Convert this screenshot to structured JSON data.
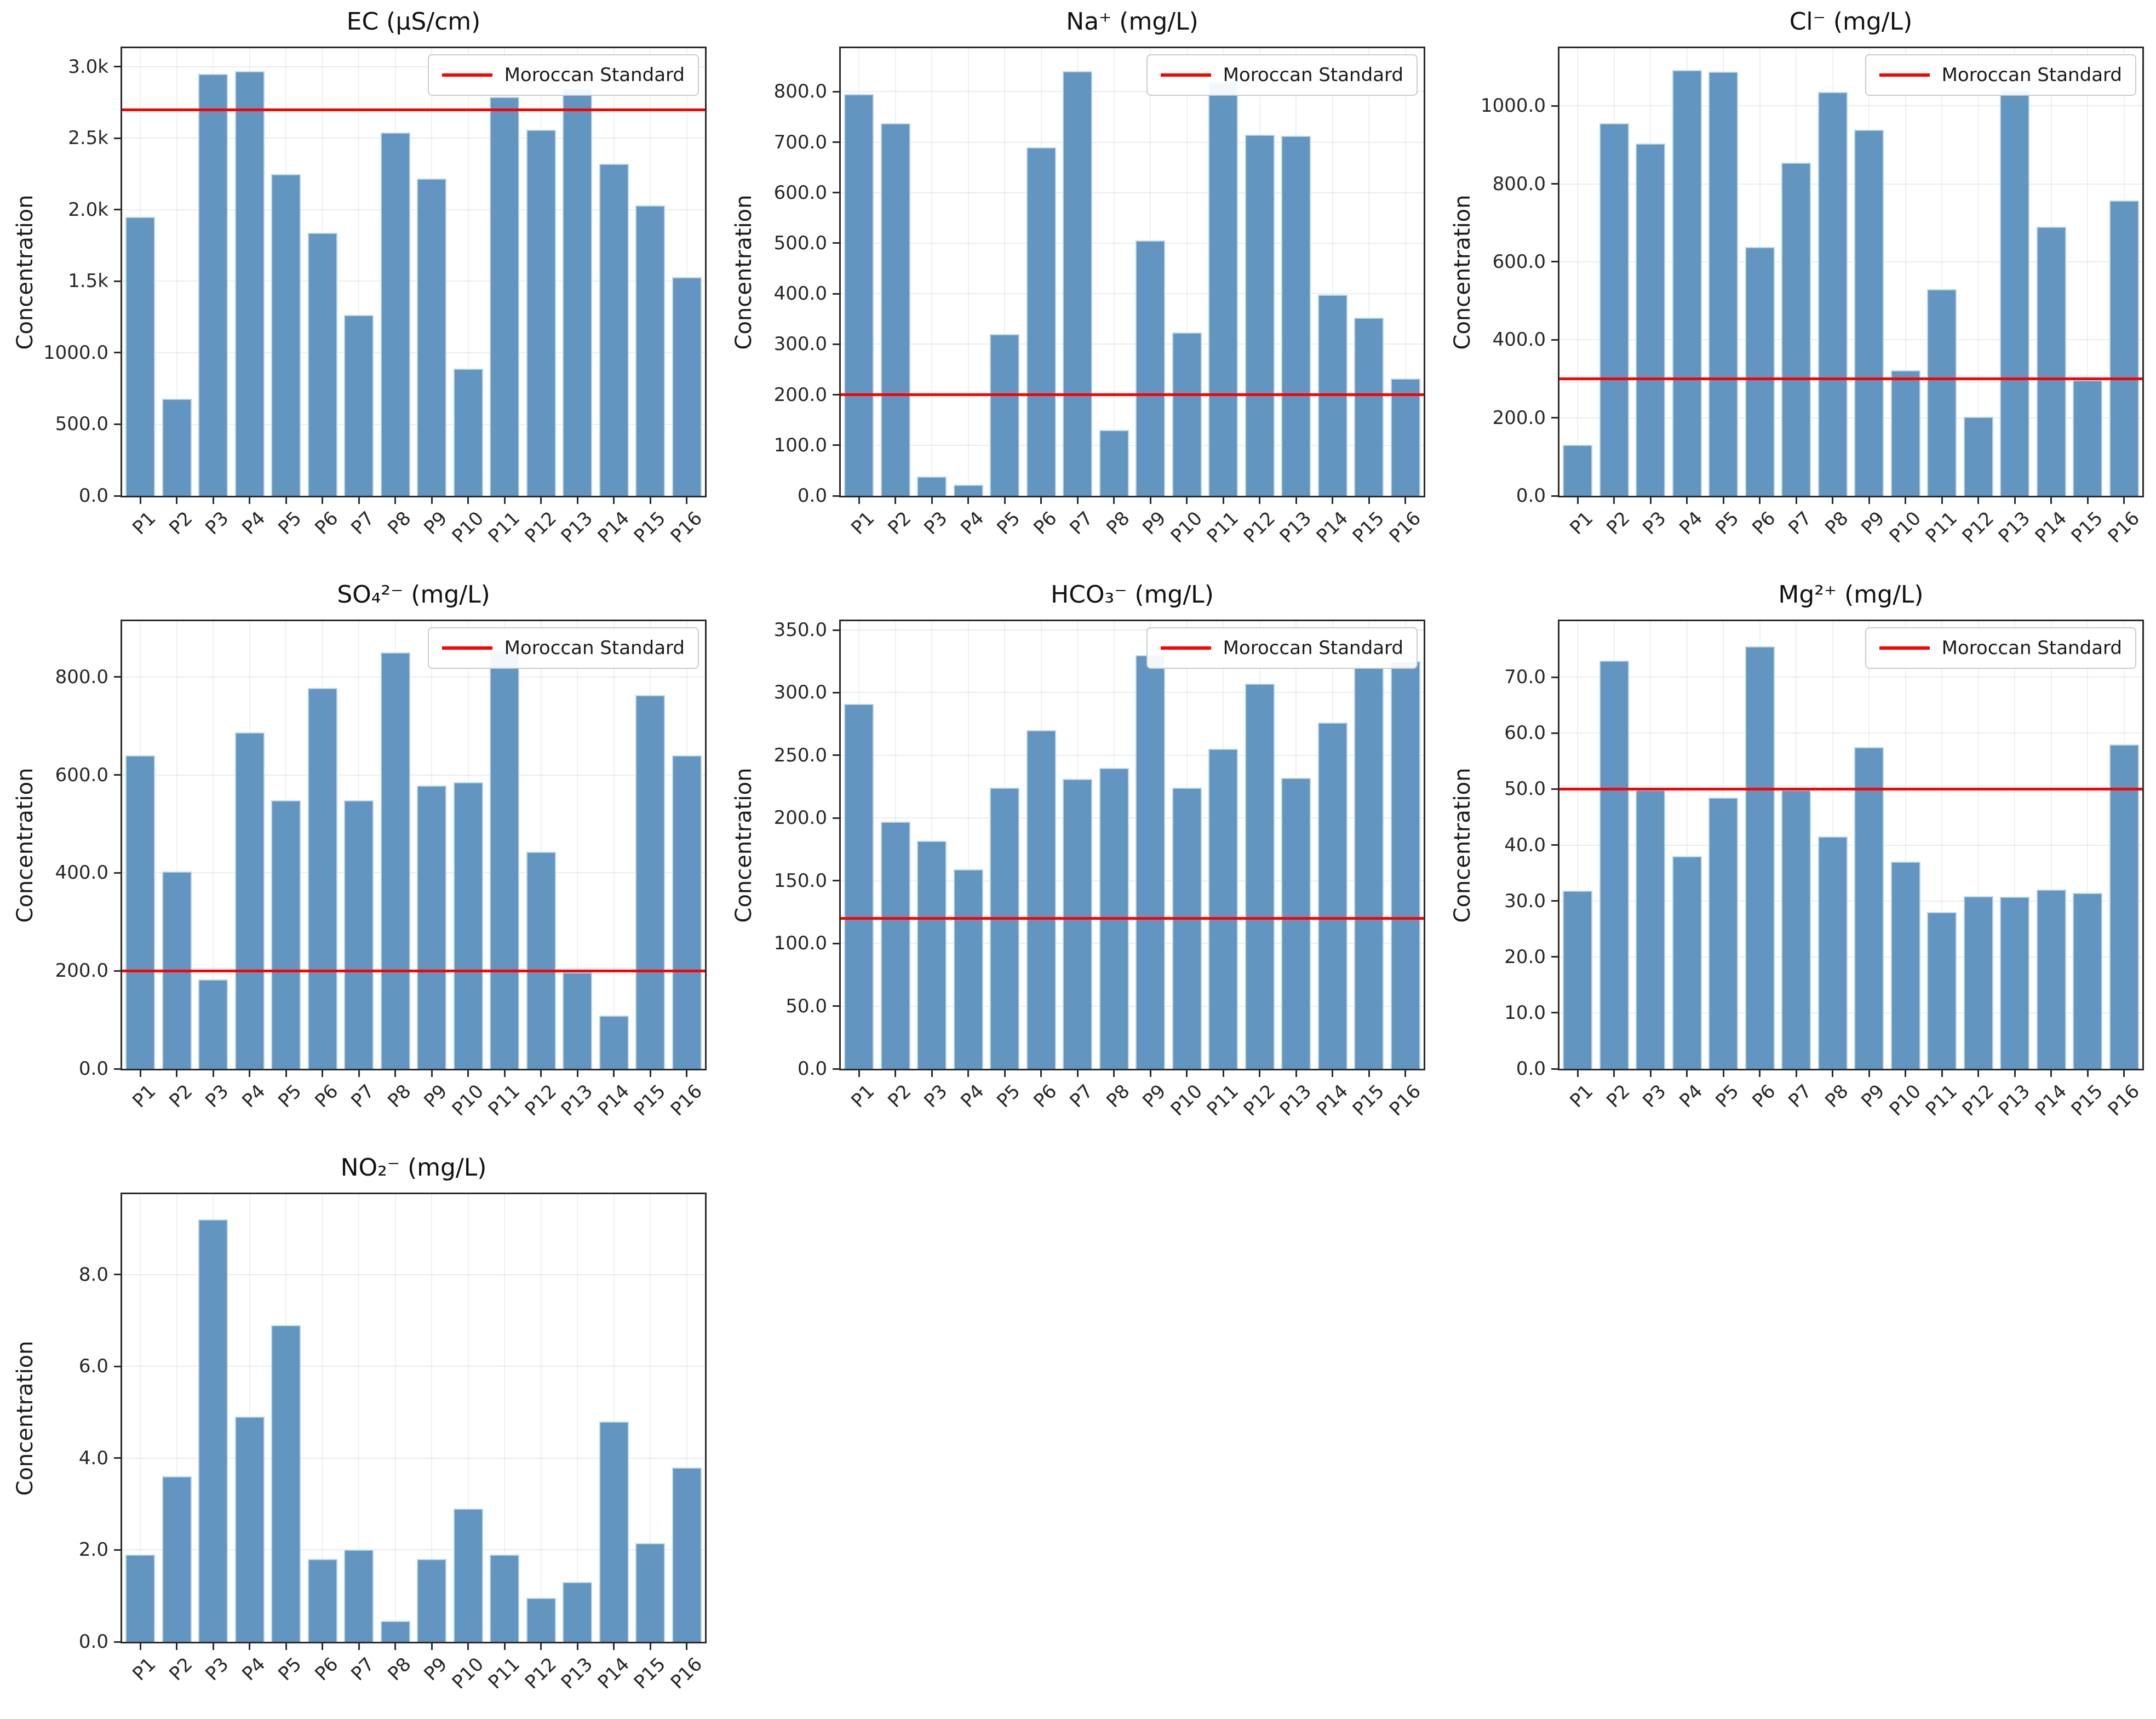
{
  "figure": {
    "background": "#ffffff",
    "bar_color": "#6295bf",
    "bar_edge_color": "#b9d6ea",
    "standard_line_color": "#ff0000",
    "axis_color": "#2b2b2b",
    "ylabel": "Concentration",
    "legend_label": "Moroccan Standard"
  },
  "categories": [
    "P1",
    "P2",
    "P3",
    "P4",
    "P5",
    "P6",
    "P7",
    "P8",
    "P9",
    "P10",
    "P11",
    "P12",
    "P13",
    "P14",
    "P15",
    "P16"
  ],
  "chart_data": [
    {
      "id": "ec",
      "type": "bar",
      "title": "EC (μS/cm)",
      "ylabel": "Concentration",
      "ylim": [
        0,
        3130
      ],
      "tick_values": [
        0,
        500,
        1000,
        1500,
        2000,
        2500,
        3000
      ],
      "tick_labels": [
        "0.0",
        "500.0",
        "1000.0",
        "1.5k",
        "2.0k",
        "2.5k",
        "3.0k"
      ],
      "values": [
        1950,
        680,
        2950,
        2970,
        2250,
        1840,
        1265,
        2540,
        2220,
        890,
        2790,
        2560,
        2850,
        2320,
        2030,
        1530
      ],
      "standard_line": 2700,
      "legend": true,
      "legend_label": "Moroccan Standard"
    },
    {
      "id": "na",
      "type": "bar",
      "title": "Na⁺ (mg/L)",
      "ylabel": "Concentration",
      "ylim": [
        0,
        886
      ],
      "tick_values": [
        0,
        100,
        200,
        300,
        400,
        500,
        600,
        700,
        800
      ],
      "tick_labels": [
        "0.0",
        "100.0",
        "200.0",
        "300.0",
        "400.0",
        "500.0",
        "600.0",
        "700.0",
        "800.0"
      ],
      "values": [
        795,
        737,
        38,
        22,
        320,
        690,
        840,
        130,
        505,
        323,
        820,
        715,
        712,
        398,
        352,
        232
      ],
      "standard_line": 200,
      "legend": true,
      "legend_label": "Moroccan Standard"
    },
    {
      "id": "cl",
      "type": "bar",
      "title": "Cl⁻ (mg/L)",
      "ylabel": "Concentration",
      "ylim": [
        0,
        1148
      ],
      "tick_values": [
        0,
        200,
        400,
        600,
        800,
        1000
      ],
      "tick_labels": [
        "0.0",
        "200.0",
        "400.0",
        "600.0",
        "800.0",
        "1000.0"
      ],
      "values": [
        130,
        955,
        903,
        1092,
        1088,
        638,
        855,
        1035,
        938,
        322,
        530,
        203,
        1040,
        690,
        297,
        757
      ],
      "standard_line": 300,
      "legend": true,
      "legend_label": "Moroccan Standard"
    },
    {
      "id": "so4",
      "type": "bar",
      "title": "SO₄²⁻ (mg/L)",
      "ylabel": "Concentration",
      "ylim": [
        0,
        914
      ],
      "tick_values": [
        0,
        200,
        400,
        600,
        800
      ],
      "tick_labels": [
        "0.0",
        "200.0",
        "400.0",
        "600.0",
        "800.0"
      ],
      "values": [
        640,
        403,
        182,
        687,
        548,
        778,
        548,
        850,
        578,
        585,
        855,
        443,
        197,
        108,
        763,
        640
      ],
      "standard_line": 200,
      "legend": true,
      "legend_label": "Moroccan Standard"
    },
    {
      "id": "hco3",
      "type": "bar",
      "title": "HCO₃⁻ (mg/L)",
      "ylabel": "Concentration",
      "ylim": [
        0,
        357
      ],
      "tick_values": [
        0,
        50,
        100,
        150,
        200,
        250,
        300,
        350
      ],
      "tick_labels": [
        "0.0",
        "50.0",
        "100.0",
        "150.0",
        "200.0",
        "250.0",
        "300.0",
        "350.0"
      ],
      "values": [
        291,
        197,
        182,
        159,
        224,
        270,
        231,
        240,
        330,
        224,
        255,
        307,
        232,
        276,
        320,
        325
      ],
      "standard_line": 120,
      "legend": true,
      "legend_label": "Moroccan Standard"
    },
    {
      "id": "mg",
      "type": "bar",
      "title": "Mg²⁺ (mg/L)",
      "ylabel": "Concentration",
      "ylim": [
        0,
        80
      ],
      "tick_values": [
        0,
        10,
        20,
        30,
        40,
        50,
        60,
        70
      ],
      "tick_labels": [
        "0.0",
        "10.0",
        "20.0",
        "30.0",
        "40.0",
        "50.0",
        "60.0",
        "70.0"
      ],
      "values": [
        31.8,
        73,
        49.8,
        38,
        48.5,
        75.5,
        49.8,
        41.5,
        57.5,
        37,
        28,
        30.8,
        30.7,
        32,
        31.4,
        58
      ],
      "standard_line": 50,
      "legend": true,
      "legend_label": "Moroccan Standard"
    },
    {
      "id": "no2",
      "type": "bar",
      "title": "NO₂⁻ (mg/L)",
      "ylabel": "Concentration",
      "ylim": [
        0,
        9.75
      ],
      "tick_values": [
        0,
        2,
        4,
        6,
        8
      ],
      "tick_labels": [
        "0.0",
        "2.0",
        "4.0",
        "6.0",
        "8.0"
      ],
      "values": [
        1.9,
        3.6,
        9.2,
        4.9,
        6.9,
        1.8,
        2.0,
        0.45,
        1.8,
        2.9,
        1.9,
        0.95,
        1.3,
        4.8,
        2.15,
        3.8
      ],
      "standard_line": null,
      "legend": false,
      "legend_label": "Moroccan Standard"
    }
  ]
}
